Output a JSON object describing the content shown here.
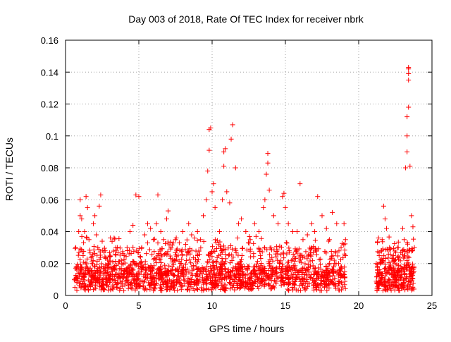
{
  "chart_data": {
    "type": "scatter",
    "title": "Day 003 of 2018, Rate Of TEC Index for receiver nbrk",
    "xlabel": "GPS time / hours",
    "ylabel": "ROTI / TECUs",
    "xlim": [
      0,
      25
    ],
    "ylim": [
      0,
      0.16
    ],
    "xticks": [
      "0",
      "5",
      "10",
      "15",
      "20",
      "25"
    ],
    "yticks": [
      "0",
      "0.02",
      "0.04",
      "0.06",
      "0.08",
      "0.1",
      "0.12",
      "0.14",
      "0.16"
    ],
    "xtick_values": [
      0,
      5,
      10,
      15,
      20,
      25
    ],
    "ytick_values": [
      0,
      0.02,
      0.04,
      0.06,
      0.08,
      0.1,
      0.12,
      0.14,
      0.16
    ],
    "grid": true,
    "marker": "plus",
    "color": "#ff0000",
    "series": [
      {
        "points": [
          [
            0.6,
            0.01
          ],
          [
            0.7,
            0.03
          ],
          [
            0.8,
            0.018
          ],
          [
            0.9,
            0.04
          ],
          [
            1.0,
            0.05
          ],
          [
            1.0,
            0.06
          ],
          [
            1.1,
            0.048
          ],
          [
            1.2,
            0.025
          ],
          [
            1.3,
            0.04
          ],
          [
            1.4,
            0.062
          ],
          [
            1.5,
            0.055
          ],
          [
            1.6,
            0.035
          ],
          [
            1.8,
            0.02
          ],
          [
            1.9,
            0.045
          ],
          [
            2.0,
            0.05
          ],
          [
            2.1,
            0.038
          ],
          [
            2.2,
            0.03
          ],
          [
            2.3,
            0.056
          ],
          [
            2.4,
            0.063
          ],
          [
            2.5,
            0.034
          ],
          [
            2.7,
            0.028
          ],
          [
            2.9,
            0.02
          ],
          [
            3.1,
            0.018
          ],
          [
            3.2,
            0.015
          ],
          [
            3.4,
            0.013
          ],
          [
            3.6,
            0.012
          ],
          [
            3.8,
            0.022
          ],
          [
            4.0,
            0.025
          ],
          [
            4.2,
            0.03
          ],
          [
            4.4,
            0.04
          ],
          [
            4.6,
            0.044
          ],
          [
            4.8,
            0.063
          ],
          [
            5.0,
            0.062
          ],
          [
            5.2,
            0.03
          ],
          [
            5.4,
            0.038
          ],
          [
            5.6,
            0.045
          ],
          [
            5.8,
            0.042
          ],
          [
            6.0,
            0.035
          ],
          [
            6.2,
            0.045
          ],
          [
            6.3,
            0.063
          ],
          [
            6.5,
            0.04
          ],
          [
            6.7,
            0.035
          ],
          [
            6.9,
            0.048
          ],
          [
            7.0,
            0.053
          ],
          [
            7.2,
            0.03
          ],
          [
            7.5,
            0.035
          ],
          [
            7.8,
            0.028
          ],
          [
            8.0,
            0.04
          ],
          [
            8.2,
            0.032
          ],
          [
            8.4,
            0.045
          ],
          [
            8.6,
            0.038
          ],
          [
            8.8,
            0.036
          ],
          [
            9.0,
            0.04
          ],
          [
            9.2,
            0.035
          ],
          [
            9.4,
            0.05
          ],
          [
            9.6,
            0.06
          ],
          [
            9.7,
            0.078
          ],
          [
            9.8,
            0.091
          ],
          [
            9.8,
            0.104
          ],
          [
            9.9,
            0.105
          ],
          [
            10.0,
            0.065
          ],
          [
            10.1,
            0.07
          ],
          [
            10.2,
            0.055
          ],
          [
            10.5,
            0.04
          ],
          [
            10.7,
            0.06
          ],
          [
            10.8,
            0.081
          ],
          [
            10.8,
            0.09
          ],
          [
            10.9,
            0.092
          ],
          [
            11.0,
            0.065
          ],
          [
            11.2,
            0.058
          ],
          [
            11.3,
            0.098
          ],
          [
            11.4,
            0.107
          ],
          [
            11.6,
            0.08
          ],
          [
            11.8,
            0.045
          ],
          [
            12.0,
            0.048
          ],
          [
            12.3,
            0.04
          ],
          [
            12.6,
            0.035
          ],
          [
            12.9,
            0.045
          ],
          [
            13.2,
            0.04
          ],
          [
            13.5,
            0.055
          ],
          [
            13.6,
            0.06
          ],
          [
            13.7,
            0.076
          ],
          [
            13.8,
            0.083
          ],
          [
            13.8,
            0.089
          ],
          [
            13.9,
            0.066
          ],
          [
            14.2,
            0.05
          ],
          [
            14.5,
            0.045
          ],
          [
            14.8,
            0.062
          ],
          [
            14.9,
            0.064
          ],
          [
            15.0,
            0.055
          ],
          [
            15.2,
            0.045
          ],
          [
            15.5,
            0.04
          ],
          [
            15.8,
            0.04
          ],
          [
            16.0,
            0.07
          ],
          [
            16.2,
            0.035
          ],
          [
            16.5,
            0.038
          ],
          [
            16.8,
            0.045
          ],
          [
            17.0,
            0.04
          ],
          [
            17.2,
            0.062
          ],
          [
            17.5,
            0.05
          ],
          [
            17.8,
            0.042
          ],
          [
            18.0,
            0.035
          ],
          [
            18.2,
            0.052
          ],
          [
            18.5,
            0.045
          ],
          [
            18.8,
            0.03
          ],
          [
            19.0,
            0.045
          ],
          [
            19.1,
            0.035
          ],
          [
            19.1,
            0.025
          ],
          [
            21.2,
            0.02
          ],
          [
            21.4,
            0.025
          ],
          [
            21.6,
            0.035
          ],
          [
            21.7,
            0.056
          ],
          [
            21.8,
            0.048
          ],
          [
            21.9,
            0.042
          ],
          [
            22.1,
            0.03
          ],
          [
            22.4,
            0.022
          ],
          [
            22.7,
            0.03
          ],
          [
            23.0,
            0.042
          ],
          [
            23.1,
            0.035
          ],
          [
            23.2,
            0.08
          ],
          [
            23.3,
            0.09
          ],
          [
            23.3,
            0.1
          ],
          [
            23.3,
            0.112
          ],
          [
            23.4,
            0.118
          ],
          [
            23.4,
            0.135
          ],
          [
            23.4,
            0.139
          ],
          [
            23.4,
            0.142
          ],
          [
            23.4,
            0.143
          ],
          [
            23.5,
            0.081
          ],
          [
            23.6,
            0.05
          ],
          [
            23.7,
            0.043
          ],
          [
            23.8,
            0.03
          ]
        ]
      }
    ]
  }
}
